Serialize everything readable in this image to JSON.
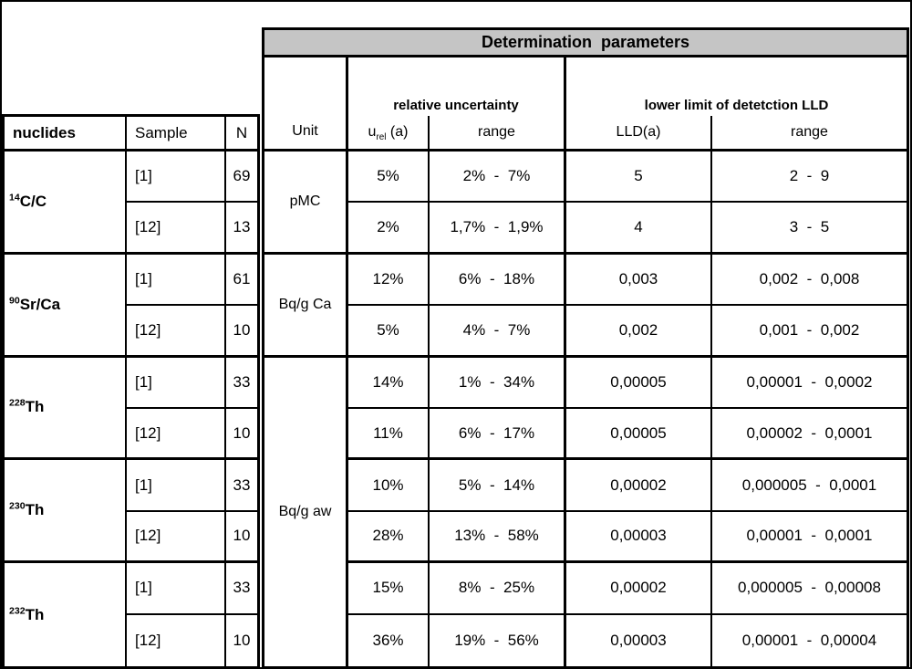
{
  "title": "Determination  parameters",
  "left_header": {
    "nuclides": "nuclides",
    "sample": "Sample",
    "n": "N"
  },
  "right_header": {
    "unit": "Unit",
    "relative_uncertainty": "relative uncertainty",
    "lld_group": "lower limit of detetction LLD",
    "urel_base": "u",
    "urel_sub": "rel",
    "urel_tail": " (a)",
    "urel_range": "range",
    "lld": "LLD(a)",
    "lld_range": "range"
  },
  "nuclides": [
    {
      "sup": "14",
      "name": "C/C"
    },
    {
      "sup": "90",
      "name": "Sr/Ca"
    },
    {
      "sup": "228",
      "name": "Th"
    },
    {
      "sup": "230",
      "name": "Th"
    },
    {
      "sup": "232",
      "name": "Th"
    }
  ],
  "units": {
    "group01": "pMC",
    "group23": "Bq/g Ca",
    "group49": "Bq/g aw"
  },
  "rows": [
    {
      "sample": "[1]",
      "n": "69",
      "urel": "5%",
      "urel_range": "2%  -  7%",
      "lld": "5",
      "lld_range": "2  -  9"
    },
    {
      "sample": "[12]",
      "n": "13",
      "urel": "2%",
      "urel_range": "1,7%  -  1,9%",
      "lld": "4",
      "lld_range": "3  -  5"
    },
    {
      "sample": "[1]",
      "n": "61",
      "urel": "12%",
      "urel_range": "6%  -  18%",
      "lld": "0,003",
      "lld_range": "0,002  -  0,008"
    },
    {
      "sample": "[12]",
      "n": "10",
      "urel": "5%",
      "urel_range": "4%  -  7%",
      "lld": "0,002",
      "lld_range": "0,001  -  0,002"
    },
    {
      "sample": "[1]",
      "n": "33",
      "urel": "14%",
      "urel_range": "1%  -  34%",
      "lld": "0,00005",
      "lld_range": "0,00001  -  0,0002"
    },
    {
      "sample": "[12]",
      "n": "10",
      "urel": "11%",
      "urel_range": "6%  -  17%",
      "lld": "0,00005",
      "lld_range": "0,00002  -  0,0001"
    },
    {
      "sample": "[1]",
      "n": "33",
      "urel": "10%",
      "urel_range": "5%  -  14%",
      "lld": "0,00002",
      "lld_range": "0,000005  -  0,0001"
    },
    {
      "sample": "[12]",
      "n": "10",
      "urel": "28%",
      "urel_range": "13%  -  58%",
      "lld": "0,00003",
      "lld_range": "0,00001  -  0,0001"
    },
    {
      "sample": "[1]",
      "n": "33",
      "urel": "15%",
      "urel_range": "8%  -  25%",
      "lld": "0,00002",
      "lld_range": "0,000005  -  0,00008"
    },
    {
      "sample": "[12]",
      "n": "10",
      "urel": "36%",
      "urel_range": "19%  -  56%",
      "lld": "0,00003",
      "lld_range": "0,00001  -  0,00004"
    }
  ],
  "colors": {
    "header_bg": "#c5c5c5",
    "border": "#000000",
    "background": "#ffffff"
  }
}
